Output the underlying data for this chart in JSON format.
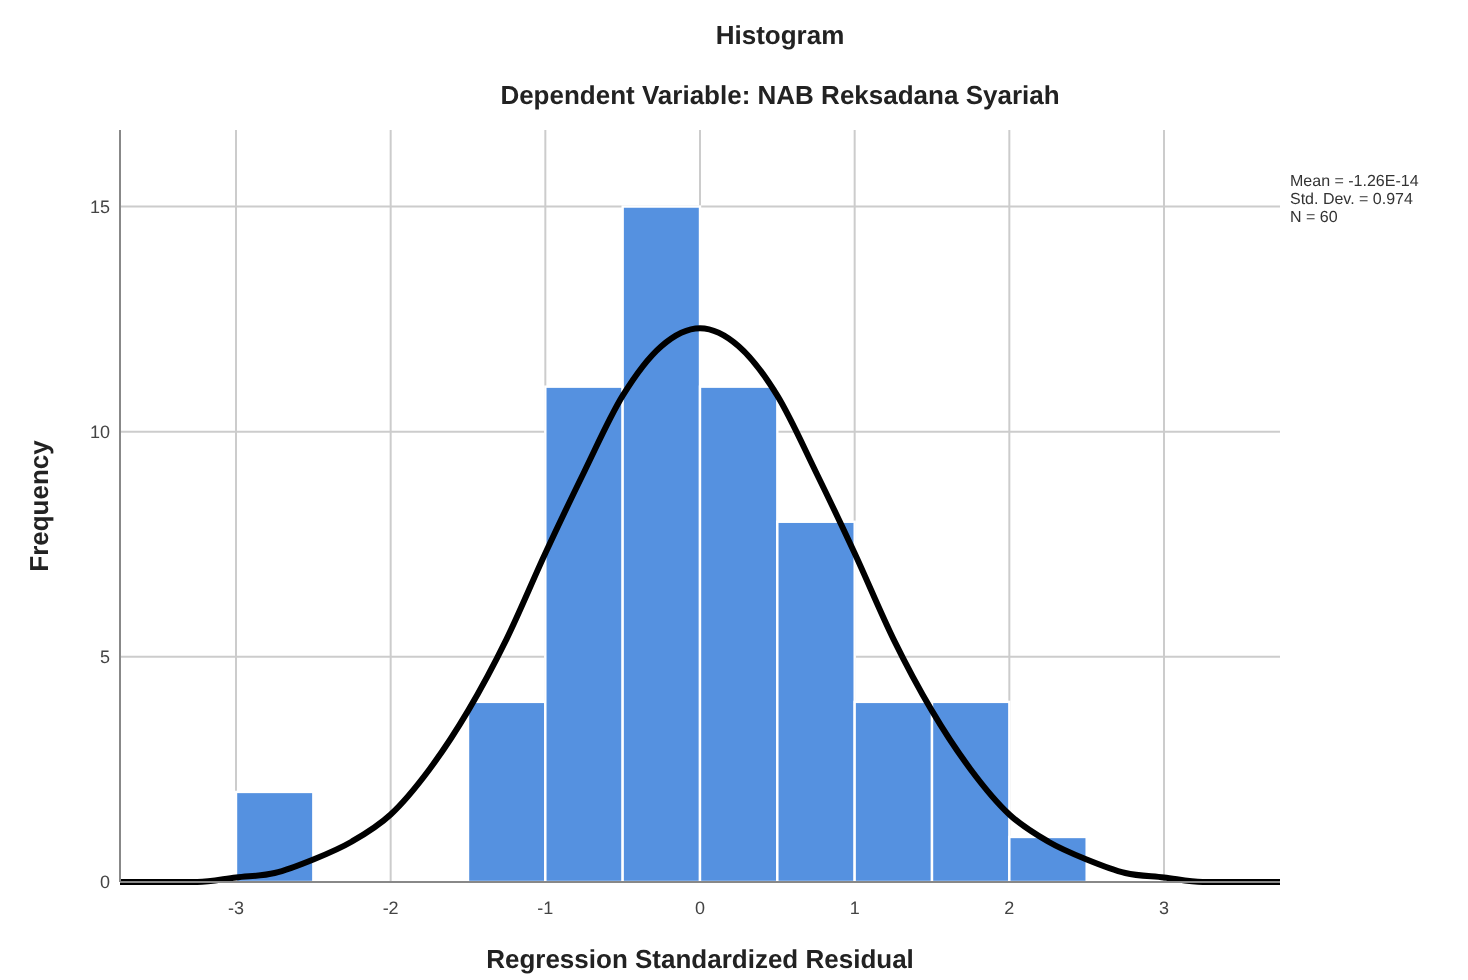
{
  "chart_data": {
    "type": "histogram",
    "title": "Histogram",
    "subtitle": "Dependent Variable: NAB Reksadana Syariah",
    "xlabel": "Regression Standardized Residual",
    "ylabel": "Frequency",
    "bins": [
      -3,
      -2.5,
      -2,
      -1.5,
      -1,
      -0.5,
      0,
      0.5,
      1,
      1.5,
      2,
      2.5
    ],
    "series": [
      {
        "color": "#5591e0",
        "values": [
          2,
          0,
          0,
          4,
          11,
          15,
          11,
          8,
          4,
          4,
          1
        ]
      },
      {
        "type": "line",
        "color": "#000000",
        "x": [
          -3.75,
          -3.5,
          -3.25,
          -3,
          -2.75,
          -2.5,
          -2.25,
          -2,
          -1.75,
          -1.5,
          -1.25,
          -1,
          -0.75,
          -0.5,
          -0.25,
          0,
          0.25,
          0.5,
          0.75,
          1,
          1.25,
          1.5,
          1.75,
          2,
          2.25,
          2.5,
          2.75,
          3,
          3.25,
          3.5,
          3.75
        ],
        "values": [
          0,
          0,
          0,
          0.1,
          0.2,
          0.5,
          0.9,
          1.5,
          2.5,
          3.8,
          5.4,
          7.3,
          9.1,
          10.8,
          11.9,
          12.3,
          11.9,
          10.8,
          9.1,
          7.3,
          5.4,
          3.8,
          2.5,
          1.5,
          0.9,
          0.5,
          0.2,
          0.1,
          0,
          0,
          0
        ]
      }
    ],
    "xlim": [
      -3.75,
      3.75
    ],
    "xticks": [
      -3,
      -2,
      -1,
      0,
      1,
      2,
      3
    ],
    "ylim": [
      0,
      16.7
    ],
    "yticks": [
      0,
      5,
      10,
      15
    ],
    "grid": true,
    "annotations": [
      "Mean = -1.26E-14",
      "Std. Dev. = 0.974",
      "N = 60"
    ]
  }
}
